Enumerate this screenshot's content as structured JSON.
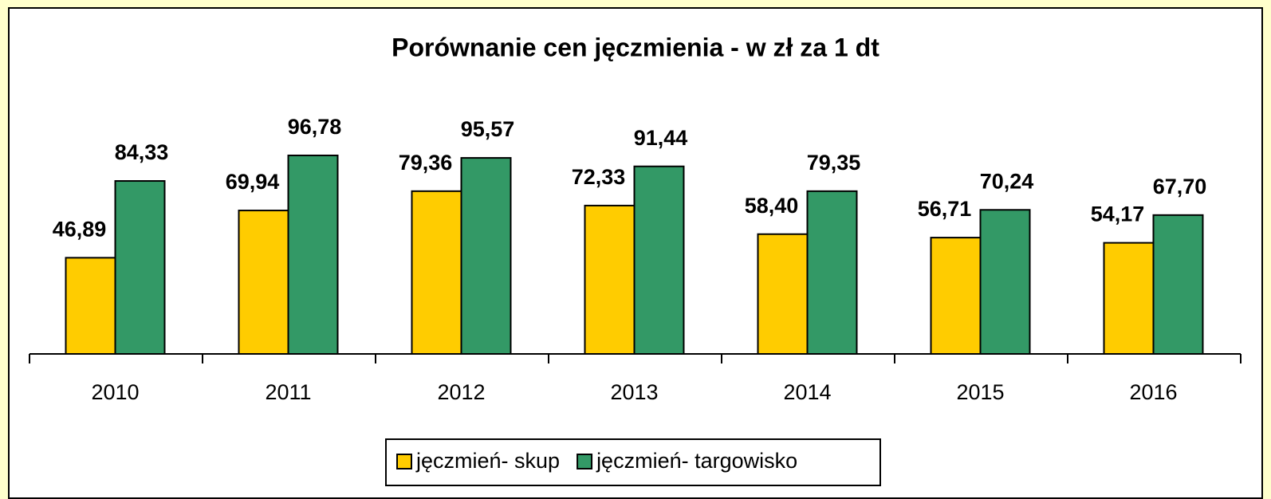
{
  "chart_data": {
    "type": "bar",
    "title": "Porównanie cen jęczmienia - w zł za 1 dt",
    "categories": [
      "2010",
      "2011",
      "2012",
      "2013",
      "2014",
      "2015",
      "2016"
    ],
    "series": [
      {
        "name": "jęczmień- skup",
        "color": "#ffcc00",
        "values": [
          46.89,
          69.94,
          79.36,
          72.33,
          58.4,
          56.71,
          54.17
        ],
        "value_labels": [
          "46,89",
          "69,94",
          "79,36",
          "72,33",
          "58,40",
          "56,71",
          "54,17"
        ]
      },
      {
        "name": "jęczmień- targowisko",
        "color": "#339966",
        "values": [
          84.33,
          96.78,
          95.57,
          91.44,
          79.35,
          70.24,
          67.7
        ],
        "value_labels": [
          "84,33",
          "96,78",
          "95,57",
          "91,44",
          "79,35",
          "70,24",
          "67,70"
        ]
      }
    ]
  }
}
